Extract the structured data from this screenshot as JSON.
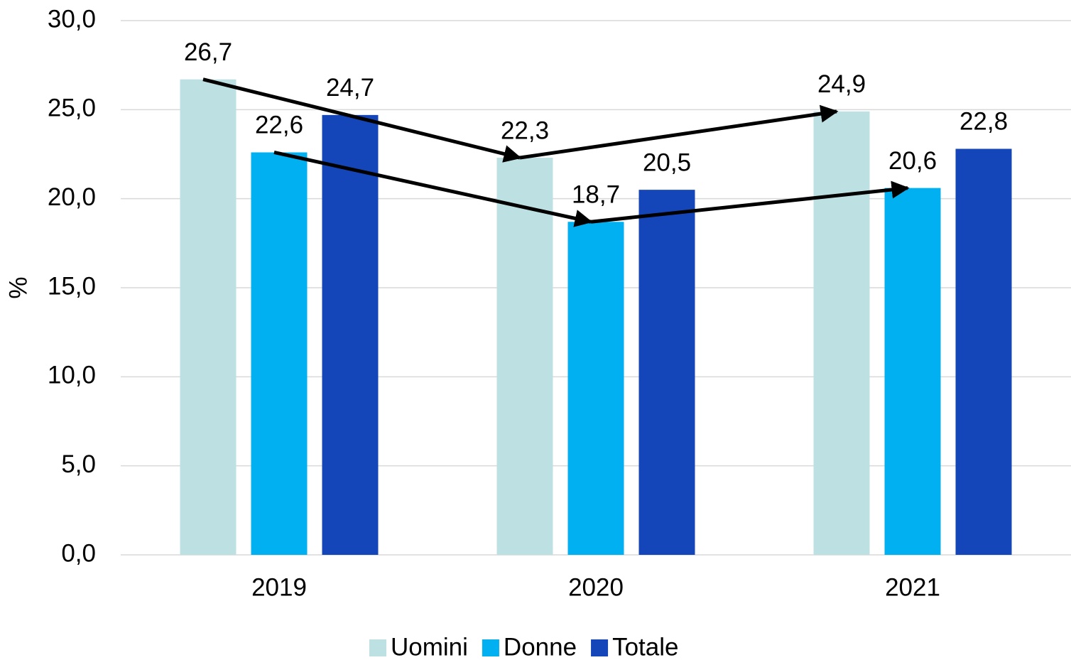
{
  "chart_data": {
    "type": "bar",
    "categories": [
      "2019",
      "2020",
      "2021"
    ],
    "series": [
      {
        "name": "Uomini",
        "color": "#bde0e3",
        "values": [
          26.7,
          22.3,
          24.9
        ],
        "value_labels": [
          "26,7",
          "22,3",
          "24,9"
        ]
      },
      {
        "name": "Donne",
        "color": "#00b0f0",
        "values": [
          22.6,
          18.7,
          20.6
        ],
        "value_labels": [
          "22,6",
          "18,7",
          "20,6"
        ]
      },
      {
        "name": "Totale",
        "color": "#1446ba",
        "values": [
          24.7,
          20.5,
          22.8
        ],
        "value_labels": [
          "24,7",
          "20,5",
          "22,8"
        ]
      }
    ],
    "y_label": "%",
    "ylim": [
      0,
      30
    ],
    "yticks": [
      {
        "value": 0,
        "label": "0,0"
      },
      {
        "value": 5,
        "label": "5,0"
      },
      {
        "value": 10,
        "label": "10,0"
      },
      {
        "value": 15,
        "label": "15,0"
      },
      {
        "value": 20,
        "label": "20,0"
      },
      {
        "value": 25,
        "label": "25,0"
      },
      {
        "value": 30,
        "label": "30,0"
      }
    ],
    "grid": true,
    "legend": "bottom"
  }
}
